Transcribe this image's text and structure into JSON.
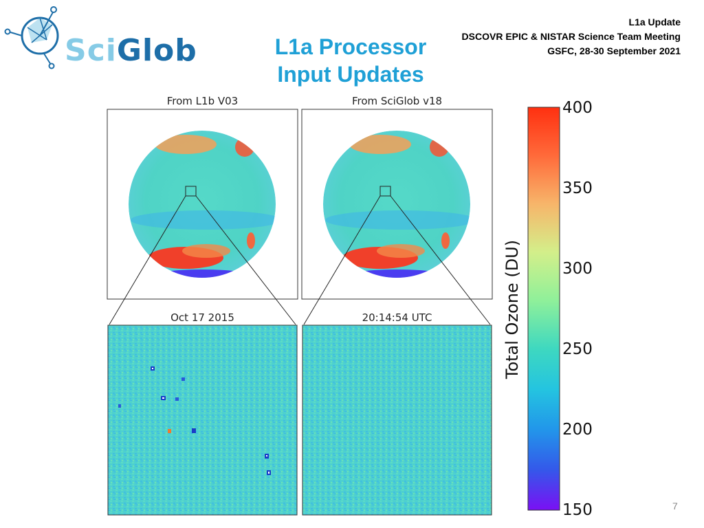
{
  "logo": {
    "text_sci": "Sci",
    "text_glob": "Glob",
    "brand_light": "#86cbe6",
    "brand_dark": "#1d6ea8"
  },
  "title": {
    "line1": "L1a Processor",
    "line2": "Input Updates",
    "color": "#1fa0d6"
  },
  "meta": {
    "line1": "L1a Update",
    "line2": "DSCOVR EPIC & NISTAR Science Team Meeting",
    "line3": "GSFC, 28-30 September 2021"
  },
  "figure": {
    "panels": {
      "top_left": "From L1b V03",
      "top_right": "From SciGlob v18",
      "bottom_left": "Oct 17 2015",
      "bottom_right": "20:14:54 UTC"
    },
    "colorbar": {
      "title": "Total Ozone (DU)",
      "ticks": [
        "400",
        "350",
        "300",
        "250",
        "200",
        "150"
      ],
      "range": [
        150,
        400
      ]
    }
  },
  "page_number": "7"
}
